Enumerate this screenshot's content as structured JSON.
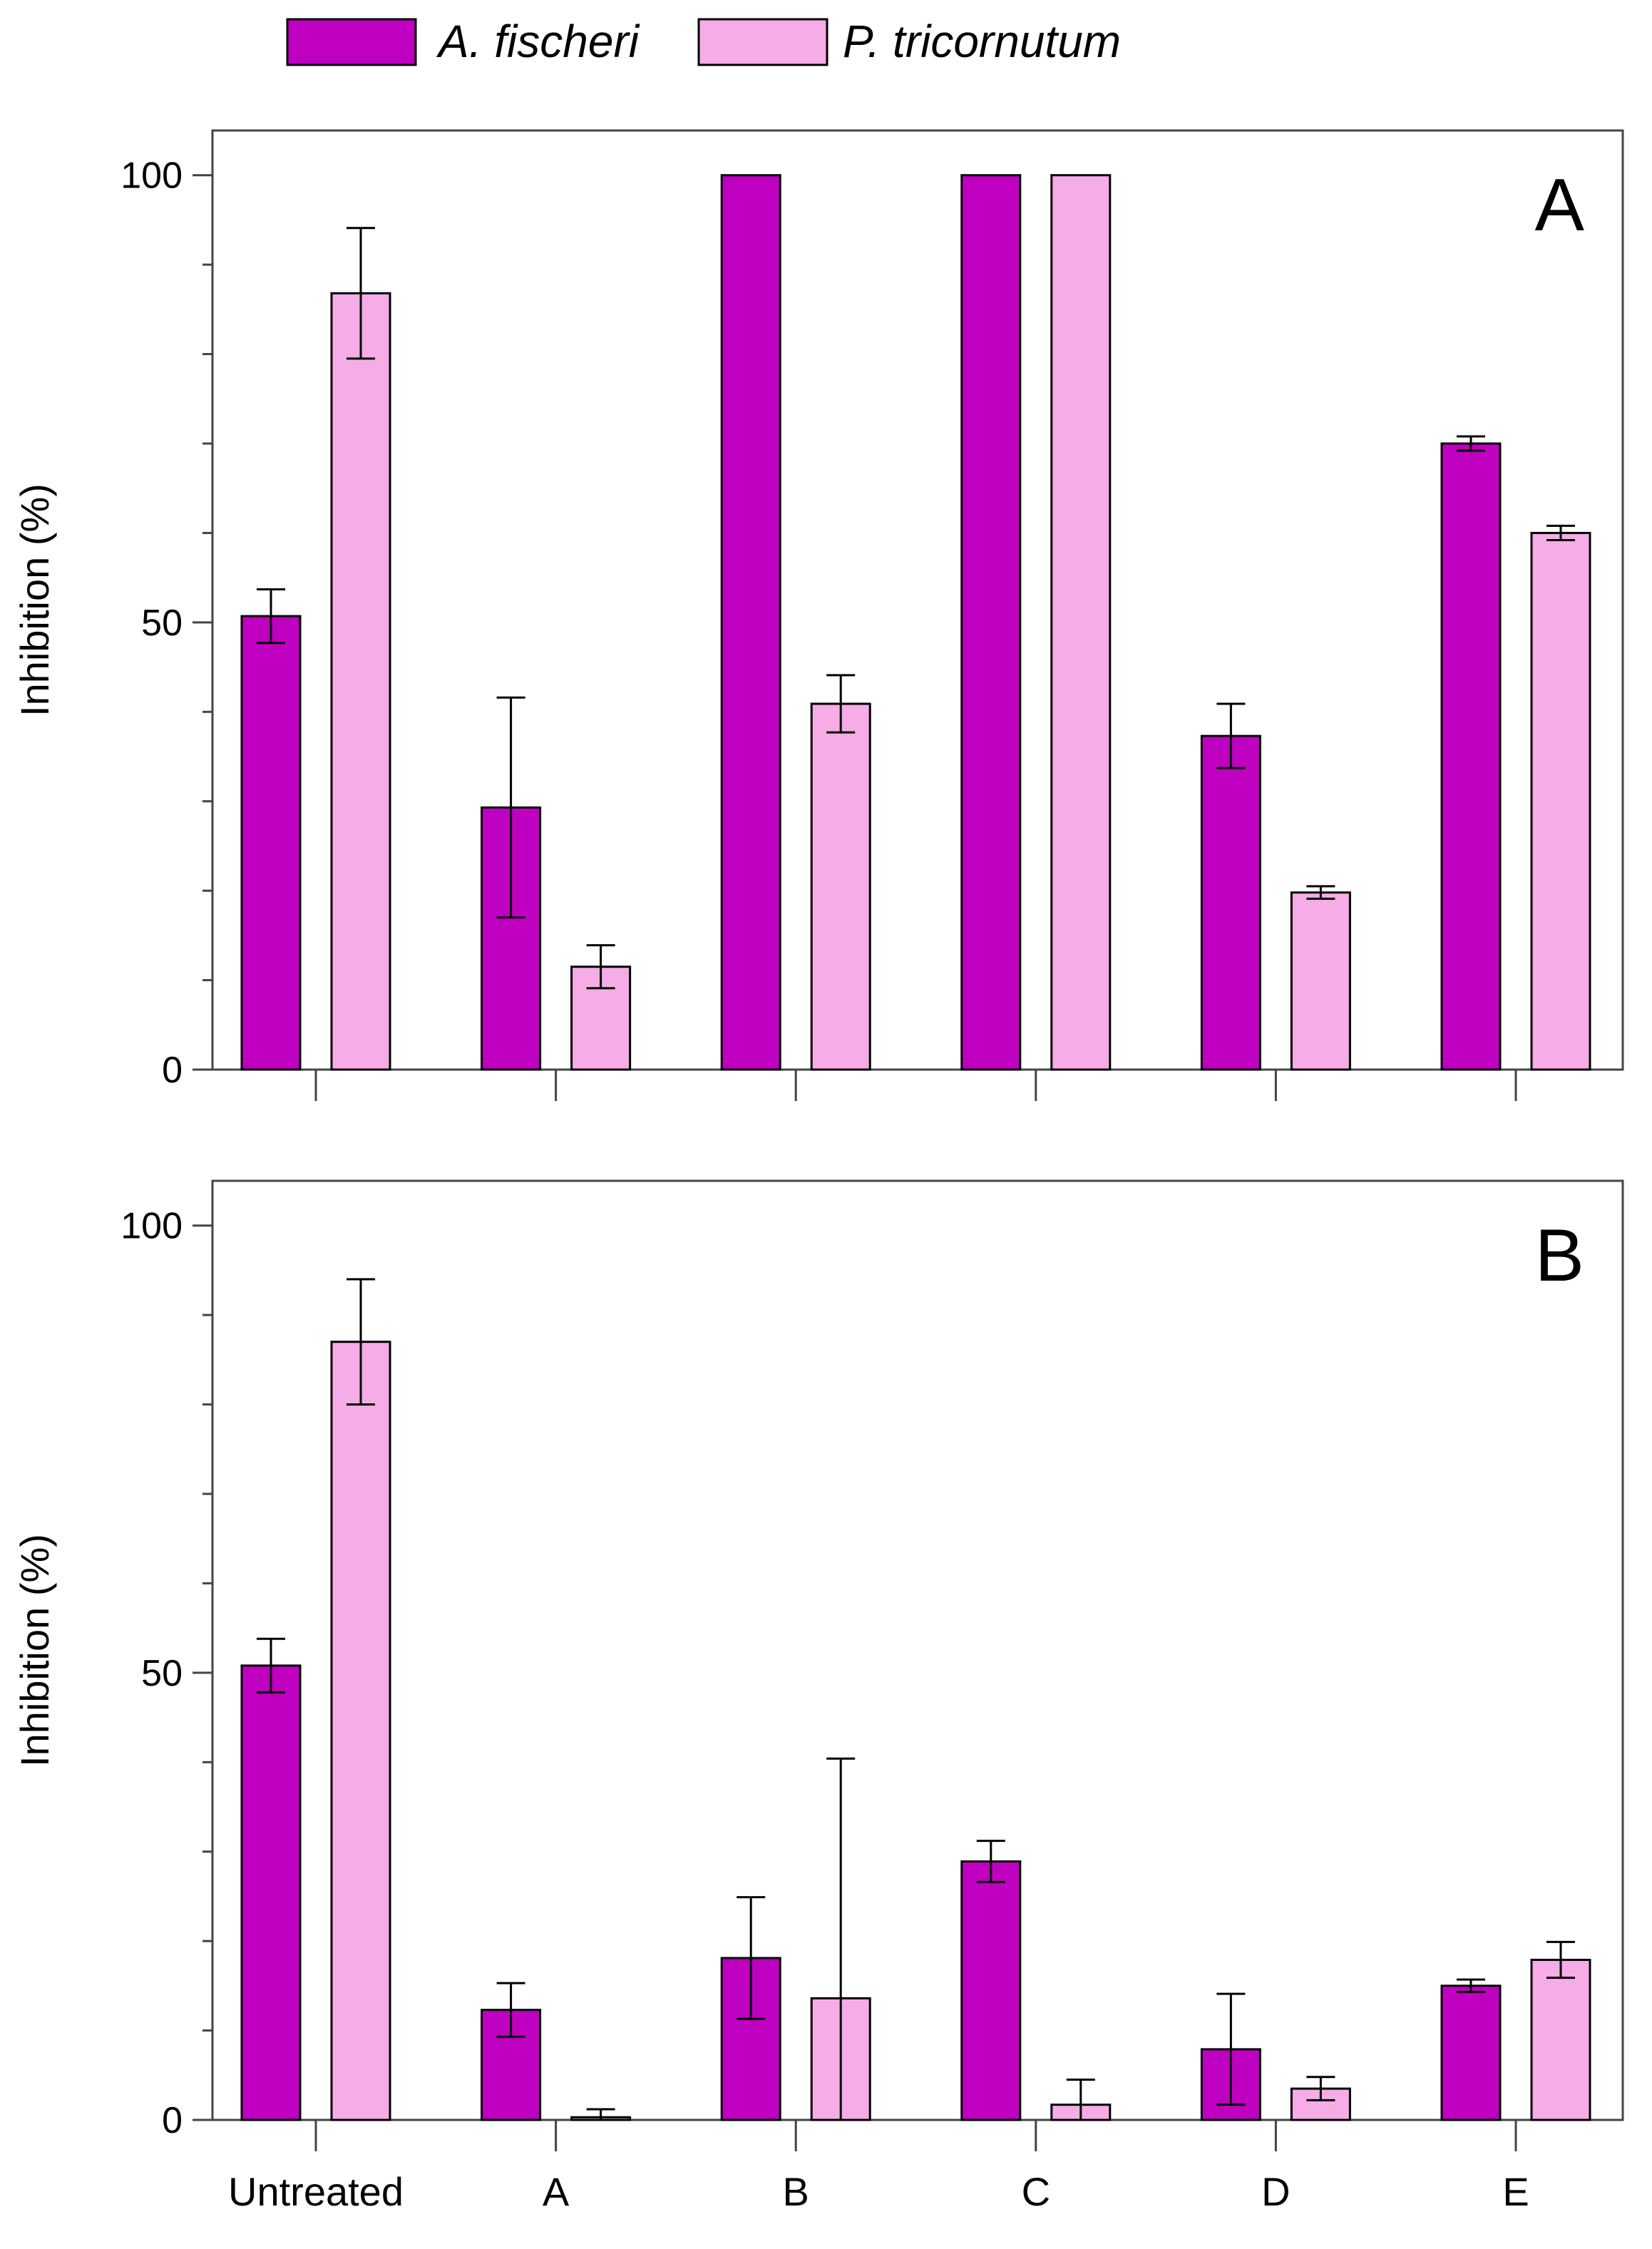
{
  "legend": [
    {
      "name": "A. fischeri",
      "color": "#C000C0"
    },
    {
      "name": "P. tricornutum",
      "color": "#F6ACE6"
    }
  ],
  "chart_data": [
    {
      "type": "bar",
      "panel_label": "A",
      "ylabel": "Inhibition  (%)",
      "ylim": [
        0,
        105
      ],
      "yticks": [
        0,
        50,
        100
      ],
      "minor_ytick_step": 10,
      "categories": [
        "Untreated",
        "A",
        "B",
        "C",
        "D",
        "E"
      ],
      "show_category_labels": false,
      "series": [
        {
          "name": "A. fischeri",
          "color": "#C000C0",
          "values": [
            50.7,
            29.3,
            100,
            100,
            37.3,
            70
          ],
          "errors": [
            3.0,
            12.3,
            0,
            0,
            3.6,
            0.8
          ]
        },
        {
          "name": "P. tricornutum",
          "color": "#F6ACE6",
          "values": [
            86.8,
            11.5,
            40.9,
            100,
            19.8,
            60
          ],
          "errors": [
            7.3,
            2.4,
            3.2,
            0,
            0.7,
            0.8
          ]
        }
      ]
    },
    {
      "type": "bar",
      "panel_label": "B",
      "ylabel": "Inhibition  (%)",
      "ylim": [
        0,
        105
      ],
      "yticks": [
        0,
        50,
        100
      ],
      "minor_ytick_step": 10,
      "categories": [
        "Untreated",
        "A",
        "B",
        "C",
        "D",
        "E"
      ],
      "show_category_labels": true,
      "series": [
        {
          "name": "A. fischeri",
          "color": "#C000C0",
          "values": [
            50.8,
            12.3,
            18.1,
            28.9,
            7.9,
            15.0
          ],
          "errors": [
            3.0,
            3.0,
            6.8,
            2.3,
            6.2,
            0.7
          ]
        },
        {
          "name": "P. tricornutum",
          "color": "#F6ACE6",
          "values": [
            87.0,
            0.3,
            13.6,
            1.7,
            3.5,
            17.9
          ],
          "errors": [
            7.0,
            0.9,
            26.8,
            2.8,
            1.3,
            2.0
          ]
        }
      ]
    }
  ]
}
